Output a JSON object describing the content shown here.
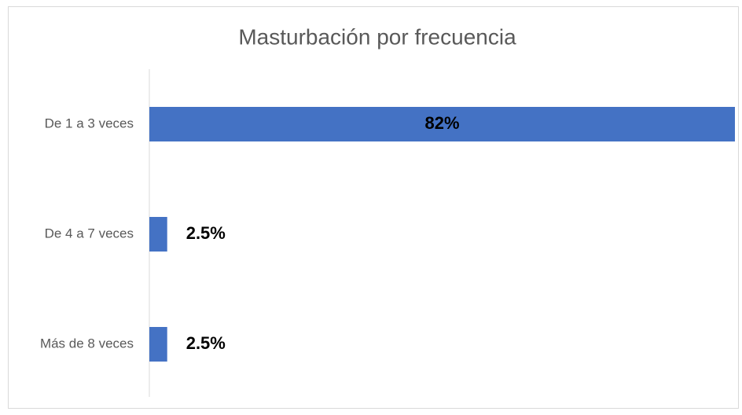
{
  "chart_data": {
    "type": "hbar",
    "title": "Masturbación por frecuencia",
    "categories": [
      "De 1 a 3 veces",
      "De 4 a 7 veces",
      "Más de 8 veces"
    ],
    "values": [
      82,
      2.5,
      2.5
    ],
    "value_labels": [
      "82%",
      "2.5%",
      "2.5%"
    ],
    "color": "#4472c4",
    "xlim": [
      0,
      82
    ],
    "grid": false
  }
}
